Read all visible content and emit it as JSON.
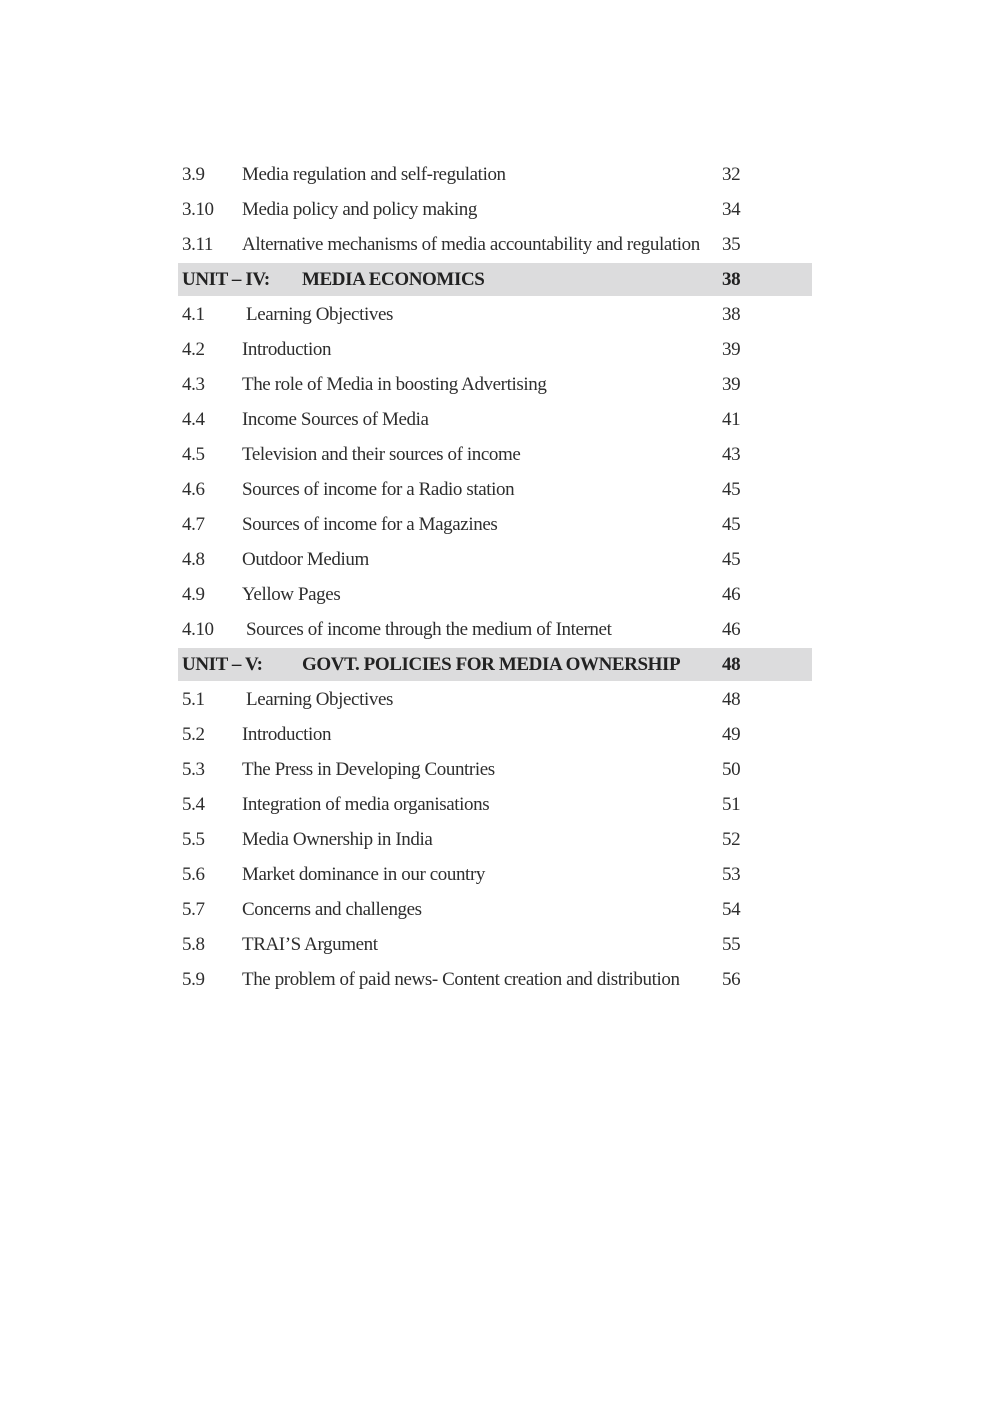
{
  "toc": [
    {
      "type": "entry",
      "num": "3.9",
      "title": "Media regulation and self-regulation",
      "page": "32"
    },
    {
      "type": "entry",
      "num": "3.10",
      "title": "Media policy and policy making",
      "page": "34"
    },
    {
      "type": "entry",
      "num": "3.11",
      "title": "Alternative mechanisms of media accountability and regulation",
      "page": "35"
    },
    {
      "type": "unit",
      "num": "UNIT – IV:",
      "title": "MEDIA ECONOMICS",
      "page": "38"
    },
    {
      "type": "entry",
      "num": "4.1",
      "title": "Learning Objectives",
      "page": "38",
      "indent": true
    },
    {
      "type": "entry",
      "num": "4.2",
      "title": "Introduction",
      "page": "39"
    },
    {
      "type": "entry",
      "num": "4.3",
      "title": "The role of Media in boosting Advertising",
      "page": "39"
    },
    {
      "type": "entry",
      "num": "4.4",
      "title": "Income Sources of Media",
      "page": "41"
    },
    {
      "type": "entry",
      "num": "4.5",
      "title": "Television and their sources of income",
      "page": "43"
    },
    {
      "type": "entry",
      "num": "4.6",
      "title": "Sources of income for a Radio station",
      "page": "45"
    },
    {
      "type": "entry",
      "num": "4.7",
      "title": "Sources of income for a Magazines",
      "page": "45"
    },
    {
      "type": "entry",
      "num": "4.8",
      "title": "Outdoor Medium",
      "page": "45"
    },
    {
      "type": "entry",
      "num": "4.9",
      "title": "Yellow Pages",
      "page": "46"
    },
    {
      "type": "entry",
      "num": "4.10",
      "title": "Sources of income through the medium of Internet",
      "page": "46",
      "indent": true
    },
    {
      "type": "unit",
      "num": "UNIT – V:",
      "title": "GOVT. POLICIES FOR MEDIA OWNERSHIP",
      "page": "48"
    },
    {
      "type": "entry",
      "num": "5.1",
      "title": "Learning Objectives",
      "page": "48",
      "indent": true
    },
    {
      "type": "entry",
      "num": "5.2",
      "title": "Introduction",
      "page": "49"
    },
    {
      "type": "entry",
      "num": "5.3",
      "title": "The Press in Developing Countries",
      "page": "50"
    },
    {
      "type": "entry",
      "num": "5.4",
      "title": "Integration of media organisations",
      "page": "51"
    },
    {
      "type": "entry",
      "num": "5.5",
      "title": "Media Ownership in India",
      "page": "52"
    },
    {
      "type": "entry",
      "num": "5.6",
      "title": "Market dominance in our country",
      "page": "53"
    },
    {
      "type": "entry",
      "num": "5.7",
      "title": "Concerns and challenges",
      "page": "54"
    },
    {
      "type": "entry",
      "num": "5.8",
      "title": "TRAI’S Argument",
      "page": "55"
    },
    {
      "type": "entry",
      "num": "5.9",
      "title": "The problem of paid news- Content creation and distribution",
      "page": "56"
    }
  ]
}
